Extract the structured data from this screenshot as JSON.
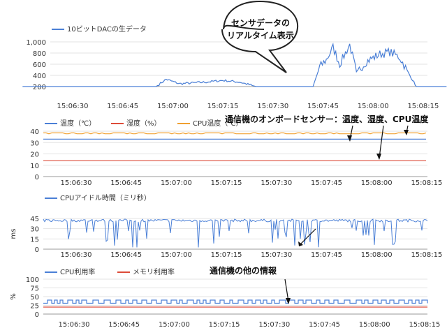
{
  "colors": {
    "blue": "#4a7fd6",
    "red": "#dd4b39",
    "orange": "#f0a030",
    "grid": "#e3e3e3",
    "axis": "#333333"
  },
  "annotations": {
    "callout": [
      "センサデータの",
      "リアルタイム表示"
    ],
    "onboard": "通信機のオンボードセンサー：温度、湿度、CPU温度",
    "other": "通信機の他の情報"
  },
  "chart_data": [
    {
      "type": "line",
      "series": [
        {
          "name": "10ビットDACの生データ",
          "color": "#4a7fd6",
          "x": [
            "15:06:15",
            "15:06:30",
            "15:06:45",
            "15:06:55",
            "15:06:58",
            "15:07:02",
            "15:07:10",
            "15:07:15",
            "15:07:20",
            "15:07:25",
            "15:07:29",
            "15:07:33",
            "15:07:37",
            "15:07:42",
            "15:07:44",
            "15:07:46",
            "15:07:48",
            "15:07:50",
            "15:07:53",
            "15:07:55",
            "15:07:58",
            "15:08:02",
            "15:08:05",
            "15:08:08",
            "15:08:11",
            "15:08:13",
            "15:08:22"
          ],
          "values": [
            200,
            200,
            200,
            200,
            330,
            250,
            280,
            310,
            280,
            200,
            200,
            200,
            200,
            200,
            550,
            680,
            900,
            600,
            950,
            450,
            650,
            780,
            820,
            720,
            400,
            200,
            200
          ]
        }
      ],
      "yticks": [
        "200",
        "400",
        "600",
        "800",
        "1,000"
      ],
      "ylim": [
        200,
        1000
      ],
      "xticks": [
        "15:06:30",
        "15:06:45",
        "15:07:00",
        "15:07:15",
        "15:07:30",
        "15:07:45",
        "15:08:00",
        "15:08:15"
      ],
      "legend": "top-left"
    },
    {
      "type": "line",
      "series": [
        {
          "name": "温度（℃）",
          "color": "#4a7fd6",
          "value": 33
        },
        {
          "name": "湿度（%）",
          "color": "#dd4b39",
          "value": 14
        },
        {
          "name": "CPU温度（℃）",
          "color": "#f0a030",
          "value": 38
        }
      ],
      "yticks": [
        "0",
        "10",
        "20",
        "30",
        "40"
      ],
      "ylim": [
        0,
        40
      ],
      "xticks": [
        "15:06:30",
        "15:06:45",
        "15:07:00",
        "15:07:15",
        "15:07:30",
        "15:07:45",
        "15:08:00",
        "15:08:15"
      ],
      "legend": "top-left"
    },
    {
      "type": "line",
      "series": [
        {
          "name": "CPUアイドル時間（ミリ秒）",
          "color": "#4a7fd6",
          "baseline": 42
        }
      ],
      "ylabel": "ms",
      "yticks": [
        "0",
        "15",
        "30",
        "45"
      ],
      "ylim": [
        0,
        45
      ],
      "xticks": [
        "15:06:30",
        "15:06:45",
        "15:07:00",
        "15:07:15",
        "15:07:30",
        "15:07:45",
        "15:08:00",
        "15:08:15"
      ],
      "legend": "top-left"
    },
    {
      "type": "line",
      "series": [
        {
          "name": "CPU利用率",
          "color": "#4a7fd6",
          "low": 31,
          "high": 40
        },
        {
          "name": "メモリ利用率",
          "color": "#dd4b39",
          "value": 20
        }
      ],
      "ylabel": "%",
      "yticks": [
        "0",
        "25",
        "50",
        "75",
        "100"
      ],
      "ylim": [
        0,
        100
      ],
      "xticks": [
        "15:06:30",
        "15:06:45",
        "15:07:00",
        "15:07:15",
        "15:07:30",
        "15:07:45",
        "15:08:00",
        "15:08:15"
      ],
      "legend": "top-left"
    }
  ]
}
